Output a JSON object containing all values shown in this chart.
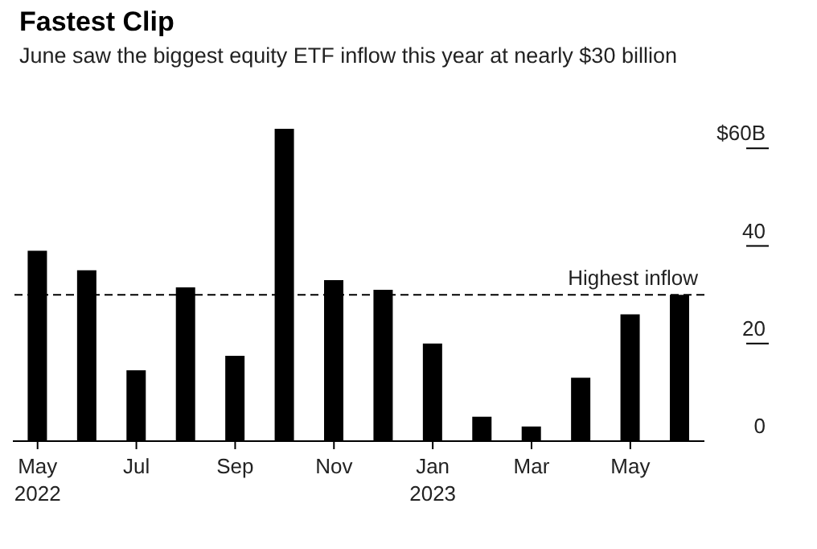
{
  "chart_data": {
    "type": "bar",
    "title": "Fastest Clip",
    "subtitle": "June saw the biggest equity ETF inflow this year at nearly $30 billion",
    "categories": [
      "May 2022",
      null,
      "Jul",
      null,
      "Sep",
      null,
      "Nov",
      null,
      "Jan 2023",
      null,
      "Mar",
      null,
      "May",
      null
    ],
    "values": [
      39,
      35,
      14.5,
      31.5,
      17.5,
      64,
      33,
      31,
      20,
      5,
      3,
      13,
      26,
      30
    ],
    "color": "#000000",
    "ylim": [
      0,
      64
    ],
    "yticks": [
      0,
      20,
      40,
      {
        "value": 60,
        "label": "$60B"
      }
    ],
    "ref_lines": [
      {
        "axis": "y",
        "value": 30,
        "label": "Highest inflow",
        "line_style": "dashed",
        "color": "#000000"
      }
    ],
    "grid": false,
    "legend": false
  }
}
